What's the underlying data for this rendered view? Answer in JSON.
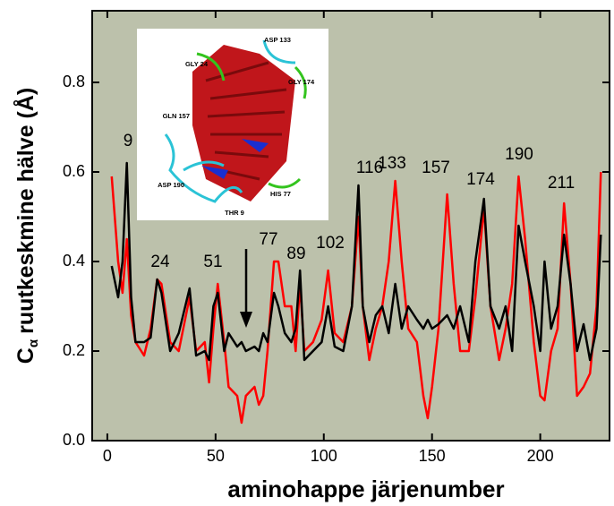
{
  "chart_data": {
    "type": "line",
    "xlabel": "aminohappe järjenumber",
    "ylabel_main": "C",
    "ylabel_sub": "α",
    "ylabel_rest": "ruutkeskmine hälve (Å)",
    "xlim": [
      -7,
      232
    ],
    "ylim": [
      0,
      0.96
    ],
    "xticks": [
      0,
      50,
      100,
      150,
      200
    ],
    "yticks": [
      {
        "value": 0,
        "label": "0.0"
      },
      0.2,
      0.4,
      0.6,
      0.8
    ],
    "background": "#bcc1ab",
    "annotations": [
      "9",
      "24",
      "51",
      "77",
      "89",
      "102",
      "116",
      "133",
      "157",
      "174",
      "190",
      "211"
    ],
    "inset_labels": [
      "ASP 133",
      "GLY 24",
      "GLY 174",
      "GLN 157",
      "ASP 190",
      "HIS 77",
      "THR 9"
    ],
    "x": [
      2,
      5,
      7,
      9,
      11,
      13,
      17,
      20,
      23,
      25,
      29,
      33,
      38,
      41,
      45,
      47,
      49,
      51,
      54,
      56,
      60,
      62,
      64,
      68,
      70,
      72,
      74,
      77,
      79,
      82,
      85,
      87,
      89,
      91,
      95,
      99,
      102,
      105,
      109,
      113,
      116,
      118,
      121,
      124,
      127,
      130,
      133,
      136,
      139,
      143,
      146,
      148,
      150,
      153,
      157,
      160,
      163,
      167,
      170,
      174,
      177,
      181,
      184,
      187,
      190,
      193,
      197,
      200,
      202,
      205,
      208,
      211,
      214,
      217,
      220,
      223,
      226,
      228
    ],
    "series": [
      {
        "color": "#ff0000",
        "values": [
          0.59,
          0.4,
          0.33,
          0.45,
          0.28,
          0.22,
          0.19,
          0.25,
          0.36,
          0.35,
          0.22,
          0.2,
          0.32,
          0.2,
          0.22,
          0.13,
          0.25,
          0.35,
          0.22,
          0.12,
          0.1,
          0.04,
          0.1,
          0.12,
          0.08,
          0.1,
          0.2,
          0.4,
          0.4,
          0.3,
          0.3,
          0.2,
          0.35,
          0.2,
          0.22,
          0.27,
          0.38,
          0.24,
          0.22,
          0.3,
          0.5,
          0.3,
          0.18,
          0.25,
          0.3,
          0.4,
          0.58,
          0.4,
          0.25,
          0.22,
          0.1,
          0.05,
          0.12,
          0.25,
          0.55,
          0.35,
          0.2,
          0.2,
          0.32,
          0.52,
          0.3,
          0.18,
          0.25,
          0.35,
          0.59,
          0.45,
          0.22,
          0.1,
          0.09,
          0.2,
          0.25,
          0.53,
          0.35,
          0.1,
          0.12,
          0.15,
          0.3,
          0.6
        ]
      },
      {
        "color": "#000000",
        "values": [
          0.39,
          0.32,
          0.4,
          0.62,
          0.32,
          0.22,
          0.22,
          0.23,
          0.36,
          0.33,
          0.2,
          0.24,
          0.34,
          0.19,
          0.2,
          0.18,
          0.3,
          0.33,
          0.2,
          0.24,
          0.21,
          0.22,
          0.2,
          0.21,
          0.2,
          0.24,
          0.22,
          0.33,
          0.3,
          0.24,
          0.22,
          0.25,
          0.38,
          0.18,
          0.2,
          0.22,
          0.3,
          0.21,
          0.2,
          0.3,
          0.57,
          0.3,
          0.22,
          0.28,
          0.3,
          0.24,
          0.35,
          0.25,
          0.3,
          0.27,
          0.25,
          0.27,
          0.25,
          0.26,
          0.28,
          0.25,
          0.3,
          0.22,
          0.4,
          0.54,
          0.3,
          0.25,
          0.3,
          0.2,
          0.48,
          0.4,
          0.3,
          0.2,
          0.4,
          0.25,
          0.3,
          0.46,
          0.35,
          0.2,
          0.26,
          0.18,
          0.25,
          0.46
        ]
      }
    ]
  }
}
